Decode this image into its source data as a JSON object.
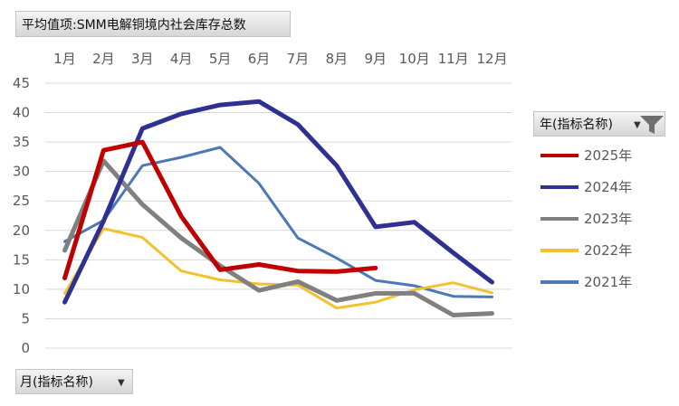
{
  "title_button": {
    "label": "平均值项:SMM电解铜境内社会库存总数"
  },
  "legend_header": {
    "label": "年(指标名称)"
  },
  "axis_filter": {
    "label": "月(指标名称)"
  },
  "chart_data": {
    "type": "line",
    "categories": [
      "1月",
      "2月",
      "3月",
      "4月",
      "5月",
      "6月",
      "7月",
      "8月",
      "9月",
      "10月",
      "11月",
      "12月"
    ],
    "y_ticks": [
      "0",
      "5",
      "10",
      "15",
      "20",
      "25",
      "30",
      "35",
      "40",
      "45"
    ],
    "ylim": [
      0,
      45
    ],
    "grid": true,
    "legend_position": "right",
    "x_axis_position": "top",
    "series": [
      {
        "name": "2025年",
        "color": "#C00000",
        "values": [
          11.9,
          33.6,
          35.0,
          22.4,
          13.3,
          14.2,
          13.1,
          13.0,
          13.6,
          null,
          null,
          null
        ]
      },
      {
        "name": "2024年",
        "color": "#2E3192",
        "values": [
          7.8,
          21.6,
          37.3,
          39.8,
          41.3,
          41.9,
          38.0,
          31.0,
          20.6,
          21.4,
          16.2,
          11.2
        ]
      },
      {
        "name": "2023年",
        "color": "#808080",
        "values": [
          16.6,
          31.8,
          24.4,
          18.7,
          14.0,
          9.8,
          11.3,
          8.1,
          9.3,
          9.3,
          5.6,
          5.9
        ]
      },
      {
        "name": "2022年",
        "color": "#F2C12E",
        "values": [
          9.3,
          20.3,
          18.8,
          13.1,
          11.6,
          10.9,
          10.7,
          6.8,
          7.8,
          9.9,
          11.1,
          9.4
        ]
      },
      {
        "name": "2021年",
        "color": "#4C78B5",
        "values": [
          18.1,
          21.7,
          31.0,
          32.4,
          34.1,
          28.0,
          18.7,
          15.3,
          11.5,
          10.6,
          8.8,
          8.7
        ]
      }
    ]
  }
}
